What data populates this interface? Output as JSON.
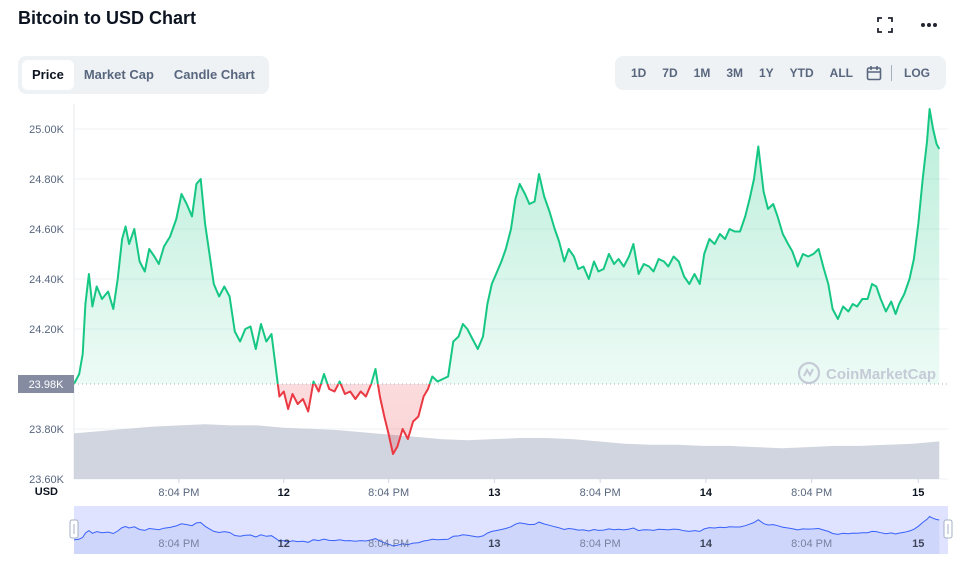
{
  "header": {
    "title": "Bitcoin to USD Chart"
  },
  "tabs": [
    {
      "label": "Price",
      "active": true
    },
    {
      "label": "Market Cap"
    },
    {
      "label": "Candle Chart"
    }
  ],
  "ranges": [
    "1D",
    "7D",
    "1M",
    "3M",
    "1Y",
    "YTD",
    "ALL"
  ],
  "log_label": "LOG",
  "icons": {
    "fullscreen": "fullscreen-icon",
    "more": "more-icon",
    "calendar": "calendar-icon"
  },
  "watermark": "CoinMarketCap",
  "colors": {
    "up": "#16c784",
    "down": "#ea3943",
    "volume": "#c9ced9",
    "navigator": "#dfe3ff",
    "navigator_line": "#3861fb"
  },
  "chart_data": {
    "type": "line",
    "ylabel": "USD",
    "yticks": [
      "25.00K",
      "24.80K",
      "24.60K",
      "24.40K",
      "24.20K",
      "23.80K",
      "23.60K"
    ],
    "ytick_values": [
      25000,
      24800,
      24600,
      24400,
      24200,
      23800,
      23600
    ],
    "ylim": [
      23600,
      25100
    ],
    "baseline": 23980,
    "baseline_label": "23.98K",
    "xlim": [
      0,
      100
    ],
    "xticks": [
      {
        "x": 12.0,
        "label": "8:04 PM",
        "bold": false
      },
      {
        "x": 24.0,
        "label": "12",
        "bold": true
      },
      {
        "x": 36.0,
        "label": "8:04 PM",
        "bold": false
      },
      {
        "x": 48.1,
        "label": "13",
        "bold": true
      },
      {
        "x": 60.2,
        "label": "8:04 PM",
        "bold": false
      },
      {
        "x": 72.3,
        "label": "14",
        "bold": true
      },
      {
        "x": 84.4,
        "label": "8:04 PM",
        "bold": false
      },
      {
        "x": 96.6,
        "label": "15",
        "bold": true
      }
    ],
    "price": [
      [
        0.0,
        23980
      ],
      [
        0.6,
        24020
      ],
      [
        1.0,
        24100
      ],
      [
        1.3,
        24300
      ],
      [
        1.7,
        24420
      ],
      [
        2.1,
        24290
      ],
      [
        2.6,
        24370
      ],
      [
        3.2,
        24320
      ],
      [
        3.9,
        24350
      ],
      [
        4.5,
        24280
      ],
      [
        5.0,
        24400
      ],
      [
        5.5,
        24560
      ],
      [
        5.9,
        24610
      ],
      [
        6.3,
        24540
      ],
      [
        6.9,
        24600
      ],
      [
        7.5,
        24470
      ],
      [
        8.1,
        24430
      ],
      [
        8.6,
        24520
      ],
      [
        9.2,
        24490
      ],
      [
        9.7,
        24460
      ],
      [
        10.3,
        24530
      ],
      [
        11.0,
        24570
      ],
      [
        11.7,
        24640
      ],
      [
        12.3,
        24740
      ],
      [
        12.9,
        24700
      ],
      [
        13.5,
        24650
      ],
      [
        14.0,
        24780
      ],
      [
        14.5,
        24800
      ],
      [
        15.0,
        24620
      ],
      [
        15.5,
        24500
      ],
      [
        16.0,
        24380
      ],
      [
        16.6,
        24330
      ],
      [
        17.2,
        24370
      ],
      [
        17.8,
        24330
      ],
      [
        18.4,
        24190
      ],
      [
        19.0,
        24150
      ],
      [
        19.6,
        24200
      ],
      [
        20.2,
        24210
      ],
      [
        20.8,
        24120
      ],
      [
        21.4,
        24220
      ],
      [
        22.0,
        24150
      ],
      [
        22.6,
        24180
      ],
      [
        23.1,
        24040
      ],
      [
        23.5,
        23930
      ],
      [
        24.0,
        23950
      ],
      [
        24.5,
        23880
      ],
      [
        25.0,
        23940
      ],
      [
        25.6,
        23900
      ],
      [
        26.2,
        23920
      ],
      [
        26.8,
        23870
      ],
      [
        27.4,
        23990
      ],
      [
        28.0,
        23950
      ],
      [
        28.6,
        24020
      ],
      [
        29.2,
        23960
      ],
      [
        29.8,
        23950
      ],
      [
        30.4,
        23990
      ],
      [
        31.0,
        23940
      ],
      [
        31.6,
        23950
      ],
      [
        32.2,
        23920
      ],
      [
        32.8,
        23950
      ],
      [
        33.4,
        23930
      ],
      [
        34.0,
        23980
      ],
      [
        34.5,
        24040
      ],
      [
        35.0,
        23930
      ],
      [
        35.5,
        23850
      ],
      [
        36.0,
        23780
      ],
      [
        36.5,
        23700
      ],
      [
        37.0,
        23730
      ],
      [
        37.6,
        23800
      ],
      [
        38.2,
        23760
      ],
      [
        38.8,
        23830
      ],
      [
        39.4,
        23850
      ],
      [
        40.0,
        23930
      ],
      [
        40.5,
        23960
      ],
      [
        41.0,
        24010
      ],
      [
        41.6,
        23990
      ],
      [
        42.2,
        24000
      ],
      [
        42.8,
        24010
      ],
      [
        43.4,
        24150
      ],
      [
        44.0,
        24170
      ],
      [
        44.5,
        24220
      ],
      [
        45.0,
        24200
      ],
      [
        45.6,
        24160
      ],
      [
        46.2,
        24120
      ],
      [
        46.8,
        24170
      ],
      [
        47.3,
        24300
      ],
      [
        47.8,
        24380
      ],
      [
        48.3,
        24420
      ],
      [
        48.9,
        24470
      ],
      [
        49.4,
        24520
      ],
      [
        50.0,
        24600
      ],
      [
        50.5,
        24720
      ],
      [
        51.0,
        24780
      ],
      [
        51.6,
        24740
      ],
      [
        52.1,
        24700
      ],
      [
        52.7,
        24710
      ],
      [
        53.2,
        24820
      ],
      [
        53.8,
        24730
      ],
      [
        54.4,
        24670
      ],
      [
        55.0,
        24600
      ],
      [
        55.5,
        24550
      ],
      [
        56.1,
        24470
      ],
      [
        56.6,
        24520
      ],
      [
        57.2,
        24490
      ],
      [
        57.7,
        24440
      ],
      [
        58.3,
        24450
      ],
      [
        58.9,
        24400
      ],
      [
        59.5,
        24470
      ],
      [
        60.0,
        24430
      ],
      [
        60.6,
        24440
      ],
      [
        61.2,
        24500
      ],
      [
        61.8,
        24460
      ],
      [
        62.3,
        24480
      ],
      [
        62.9,
        24450
      ],
      [
        63.5,
        24490
      ],
      [
        64.0,
        24540
      ],
      [
        64.6,
        24420
      ],
      [
        65.2,
        24460
      ],
      [
        65.8,
        24450
      ],
      [
        66.3,
        24430
      ],
      [
        66.9,
        24480
      ],
      [
        67.5,
        24470
      ],
      [
        68.0,
        24450
      ],
      [
        68.6,
        24490
      ],
      [
        69.2,
        24470
      ],
      [
        69.8,
        24410
      ],
      [
        70.4,
        24380
      ],
      [
        71.0,
        24420
      ],
      [
        71.6,
        24380
      ],
      [
        72.1,
        24500
      ],
      [
        72.7,
        24560
      ],
      [
        73.3,
        24540
      ],
      [
        73.9,
        24580
      ],
      [
        74.5,
        24560
      ],
      [
        75.0,
        24600
      ],
      [
        75.6,
        24590
      ],
      [
        76.2,
        24590
      ],
      [
        76.8,
        24650
      ],
      [
        77.3,
        24720
      ],
      [
        77.8,
        24800
      ],
      [
        78.3,
        24930
      ],
      [
        78.9,
        24750
      ],
      [
        79.4,
        24680
      ],
      [
        80.0,
        24700
      ],
      [
        80.5,
        24650
      ],
      [
        81.1,
        24580
      ],
      [
        81.7,
        24540
      ],
      [
        82.2,
        24510
      ],
      [
        82.8,
        24450
      ],
      [
        83.4,
        24500
      ],
      [
        84.0,
        24490
      ],
      [
        84.6,
        24500
      ],
      [
        85.2,
        24520
      ],
      [
        85.8,
        24440
      ],
      [
        86.3,
        24380
      ],
      [
        86.8,
        24280
      ],
      [
        87.4,
        24240
      ],
      [
        88.0,
        24290
      ],
      [
        88.6,
        24270
      ],
      [
        89.1,
        24300
      ],
      [
        89.6,
        24290
      ],
      [
        90.2,
        24320
      ],
      [
        90.8,
        24320
      ],
      [
        91.3,
        24380
      ],
      [
        91.8,
        24370
      ],
      [
        92.3,
        24320
      ],
      [
        92.9,
        24270
      ],
      [
        93.5,
        24310
      ],
      [
        94.0,
        24260
      ],
      [
        94.4,
        24300
      ],
      [
        95.0,
        24340
      ],
      [
        95.6,
        24400
      ],
      [
        96.1,
        24480
      ],
      [
        96.6,
        24620
      ],
      [
        97.1,
        24800
      ],
      [
        97.6,
        24950
      ],
      [
        97.9,
        25080
      ],
      [
        98.3,
        25000
      ],
      [
        98.7,
        24940
      ],
      [
        99.0,
        24920
      ]
    ],
    "volume": [
      [
        0,
        0.4
      ],
      [
        3,
        0.42
      ],
      [
        6,
        0.44
      ],
      [
        9,
        0.46
      ],
      [
        12,
        0.47
      ],
      [
        15,
        0.48
      ],
      [
        18,
        0.47
      ],
      [
        21,
        0.47
      ],
      [
        24,
        0.45
      ],
      [
        27,
        0.44
      ],
      [
        30,
        0.43
      ],
      [
        33,
        0.41
      ],
      [
        36,
        0.39
      ],
      [
        39,
        0.37
      ],
      [
        42,
        0.35
      ],
      [
        45,
        0.34
      ],
      [
        48,
        0.35
      ],
      [
        51,
        0.36
      ],
      [
        54,
        0.36
      ],
      [
        57,
        0.35
      ],
      [
        60,
        0.33
      ],
      [
        63,
        0.31
      ],
      [
        66,
        0.3
      ],
      [
        69,
        0.3
      ],
      [
        72,
        0.29
      ],
      [
        75,
        0.29
      ],
      [
        78,
        0.28
      ],
      [
        81,
        0.27
      ],
      [
        84,
        0.28
      ],
      [
        87,
        0.29
      ],
      [
        90,
        0.29
      ],
      [
        93,
        0.3
      ],
      [
        96,
        0.31
      ],
      [
        99,
        0.33
      ]
    ]
  }
}
